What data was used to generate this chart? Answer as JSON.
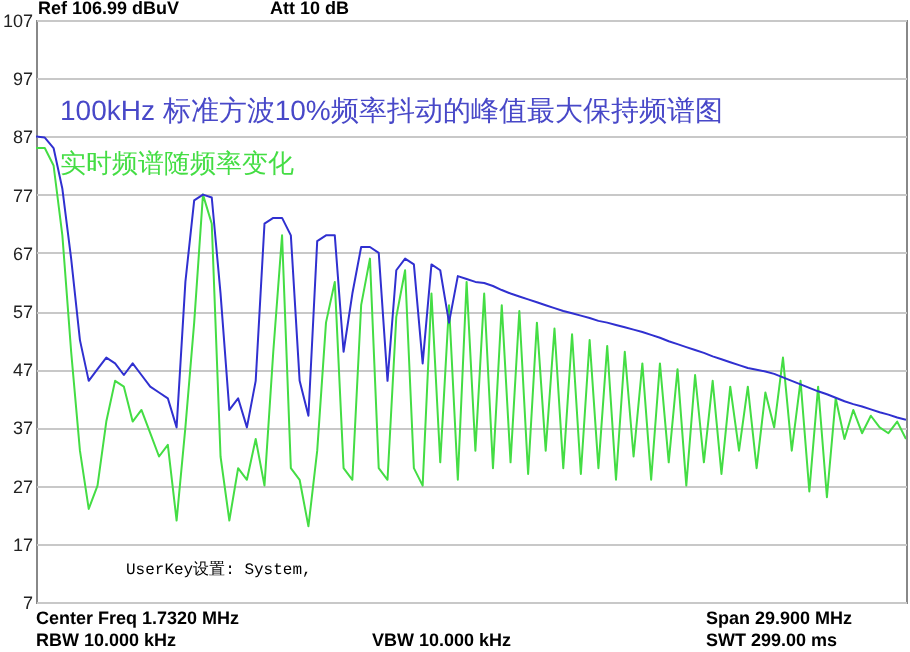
{
  "chart_data": {
    "type": "line",
    "title": "100kHz 标准方波10%频率抖动的峰值最大保持频谱图",
    "subtitle": "实时频谱随频率变化",
    "annotations": [
      "Ref 106.99 dBuV",
      "Att 10 dB",
      "UserKey设置:  System,",
      "Center Freq 1.7320 MHz",
      "RBW 10.000 kHz",
      "VBW 10.000 kHz",
      "Span 29.900 MHz",
      "SWT 299.00 ms"
    ],
    "categories": [
      null,
      null,
      null,
      null,
      null,
      null,
      null,
      null,
      null,
      null,
      null,
      null,
      null,
      null,
      null,
      null,
      null,
      null,
      null,
      null,
      null,
      null,
      null,
      null,
      null,
      null,
      null,
      null,
      null,
      null,
      null,
      null,
      null,
      null,
      null,
      null,
      null,
      null,
      null,
      null,
      null,
      null,
      null,
      null,
      null,
      null,
      null,
      null,
      null,
      null,
      null,
      null,
      null,
      null,
      null,
      null,
      null,
      null,
      null,
      null,
      null,
      null,
      null,
      null,
      null,
      null,
      null,
      null,
      null,
      null,
      null,
      null,
      null,
      null,
      null,
      null,
      null,
      null,
      null,
      null,
      null,
      null,
      null,
      null,
      null,
      null,
      null,
      null,
      null,
      null,
      null,
      null,
      null,
      null,
      null,
      null,
      null,
      null,
      null,
      null
    ],
    "series": [
      {
        "color": "#44dd44",
        "values": [
          85,
          85,
          82,
          70,
          50,
          33,
          23,
          27,
          38,
          45,
          44,
          38,
          40,
          36,
          32,
          34,
          21,
          37,
          55,
          77,
          72,
          32,
          21,
          30,
          28,
          35,
          27,
          50,
          70,
          30,
          28,
          20,
          33,
          55,
          62,
          30,
          28,
          58,
          66,
          30,
          28,
          56,
          64,
          30,
          27,
          60,
          31,
          58,
          28,
          62,
          33,
          60,
          30,
          58,
          31,
          57,
          29,
          55,
          33,
          54,
          30,
          53,
          29,
          52,
          30,
          51,
          28,
          50,
          32,
          48,
          28,
          48,
          31,
          47,
          27,
          46,
          31,
          45,
          29,
          44,
          33,
          44,
          30,
          43,
          37,
          49,
          33,
          45,
          26,
          44,
          25,
          42,
          35,
          40,
          36,
          39,
          37,
          36,
          38,
          35
        ]
      },
      {
        "color": "#3030d0",
        "values": [
          87,
          86.8,
          85,
          78,
          66,
          52,
          45,
          47,
          49,
          48,
          46,
          48,
          46,
          44,
          43,
          42,
          37,
          62,
          76,
          77,
          76.5,
          60,
          40,
          42,
          37,
          45,
          72,
          73,
          73,
          70,
          45,
          39,
          69,
          70,
          70,
          50,
          60,
          68,
          68,
          67,
          45,
          64,
          66,
          65,
          48,
          65,
          64,
          55,
          63,
          62.5,
          62,
          61.8,
          61.3,
          60.6,
          60,
          59.5,
          59,
          58.5,
          58,
          57.5,
          57,
          56.6,
          56.2,
          55.8,
          55.3,
          55,
          54.6,
          54.2,
          53.8,
          53.4,
          52.9,
          52.4,
          51.8,
          51.3,
          50.8,
          50.3,
          49.8,
          49.2,
          48.7,
          48.2,
          47.7,
          47.2,
          46.9,
          46.6,
          46.2,
          45.6,
          45,
          44.4,
          43.8,
          43.2,
          42.7,
          42.1,
          41.5,
          41,
          40.6,
          40.1,
          39.6,
          39.2,
          38.7,
          38.3
        ]
      }
    ],
    "ylim": [
      7,
      107
    ],
    "yticks": [
      7,
      17,
      27,
      37,
      47,
      57,
      67,
      77,
      87,
      97,
      107
    ],
    "grid": "y",
    "tick_labels": "y"
  }
}
